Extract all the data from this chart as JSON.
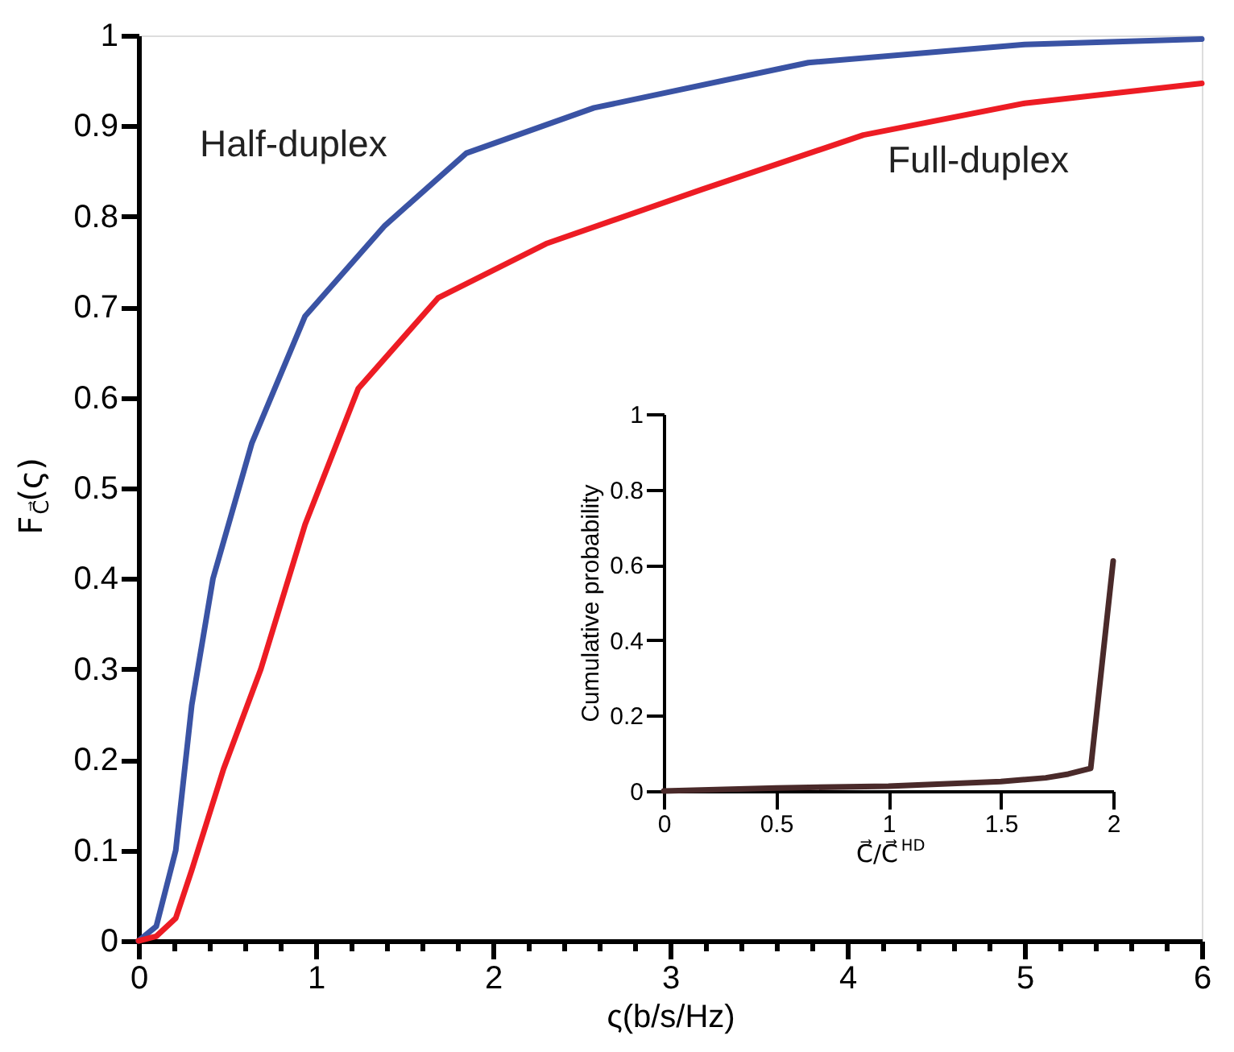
{
  "chart_data": [
    {
      "type": "line",
      "xlabel": "ς(b/s/Hz)",
      "ylabel": "F$_{C⃗}$(ς)",
      "series": [
        {
          "name": "Half-duplex",
          "color": "#3a53a4",
          "x": [
            0,
            0.1,
            0.21,
            0.3,
            0.42,
            0.64,
            0.94,
            1.39,
            1.85,
            2.57,
            3.78,
            5,
            6
          ],
          "values": [
            0,
            0.016,
            0.1,
            0.26,
            0.4,
            0.55,
            0.69,
            0.79,
            0.87,
            0.92,
            0.97,
            0.99,
            0.996
          ]
        },
        {
          "name": "Full-duplex",
          "color": "#ed1c24",
          "x": [
            0,
            0.1,
            0.21,
            0.3,
            0.48,
            0.69,
            0.94,
            1.24,
            1.69,
            2.3,
            3.18,
            4.09,
            5,
            6
          ],
          "values": [
            0,
            0.005,
            0.025,
            0.078,
            0.19,
            0.3,
            0.46,
            0.61,
            0.71,
            0.77,
            0.83,
            0.89,
            0.925,
            0.947
          ]
        }
      ],
      "xlim": [
        0,
        6
      ],
      "ylim": [
        0,
        1
      ],
      "xticks": [
        0,
        {
          "value": 0.2,
          "label": null
        },
        {
          "value": 0.4,
          "label": null
        },
        {
          "value": 0.6,
          "label": null
        },
        {
          "value": 0.8,
          "label": null
        },
        1,
        {
          "value": 1.2,
          "label": null
        },
        {
          "value": 1.4,
          "label": null
        },
        {
          "value": 1.6,
          "label": null
        },
        {
          "value": 1.8,
          "label": null
        },
        2,
        {
          "value": 2.2,
          "label": null
        },
        {
          "value": 2.4,
          "label": null
        },
        {
          "value": 2.6,
          "label": null
        },
        {
          "value": 2.8,
          "label": null
        },
        3,
        {
          "value": 3.2,
          "label": null
        },
        {
          "value": 3.4,
          "label": null
        },
        {
          "value": 3.6,
          "label": null
        },
        {
          "value": 3.8,
          "label": null
        },
        4,
        {
          "value": 4.2,
          "label": null
        },
        {
          "value": 4.4,
          "label": null
        },
        {
          "value": 4.6,
          "label": null
        },
        {
          "value": 4.8,
          "label": null
        },
        5,
        {
          "value": 5.2,
          "label": null
        },
        {
          "value": 5.4,
          "label": null
        },
        {
          "value": 5.6,
          "label": null
        },
        {
          "value": 5.8,
          "label": null
        },
        6
      ],
      "yticks": [
        0,
        0.1,
        0.2,
        0.3,
        0.4,
        0.5,
        0.6,
        0.7,
        0.8,
        0.9,
        1
      ]
    },
    {
      "type": "line",
      "xlabel": "C⃗/C⃗$^{HD}$",
      "ylabel": "Cumulative probability",
      "series": [
        {
          "color": "#4a2a2a",
          "x": [
            0,
            0.5,
            1,
            1.5,
            1.7,
            1.8,
            1.9,
            2
          ],
          "values": [
            0,
            0.008,
            0.013,
            0.025,
            0.035,
            0.045,
            0.06,
            0.61
          ]
        }
      ],
      "xlim": [
        0,
        2
      ],
      "ylim": [
        0,
        1
      ],
      "xticks": [
        0,
        0.5,
        1,
        1.5,
        2
      ],
      "yticks": [
        0,
        0.2,
        0.4,
        0.6,
        0.8,
        1
      ]
    }
  ]
}
